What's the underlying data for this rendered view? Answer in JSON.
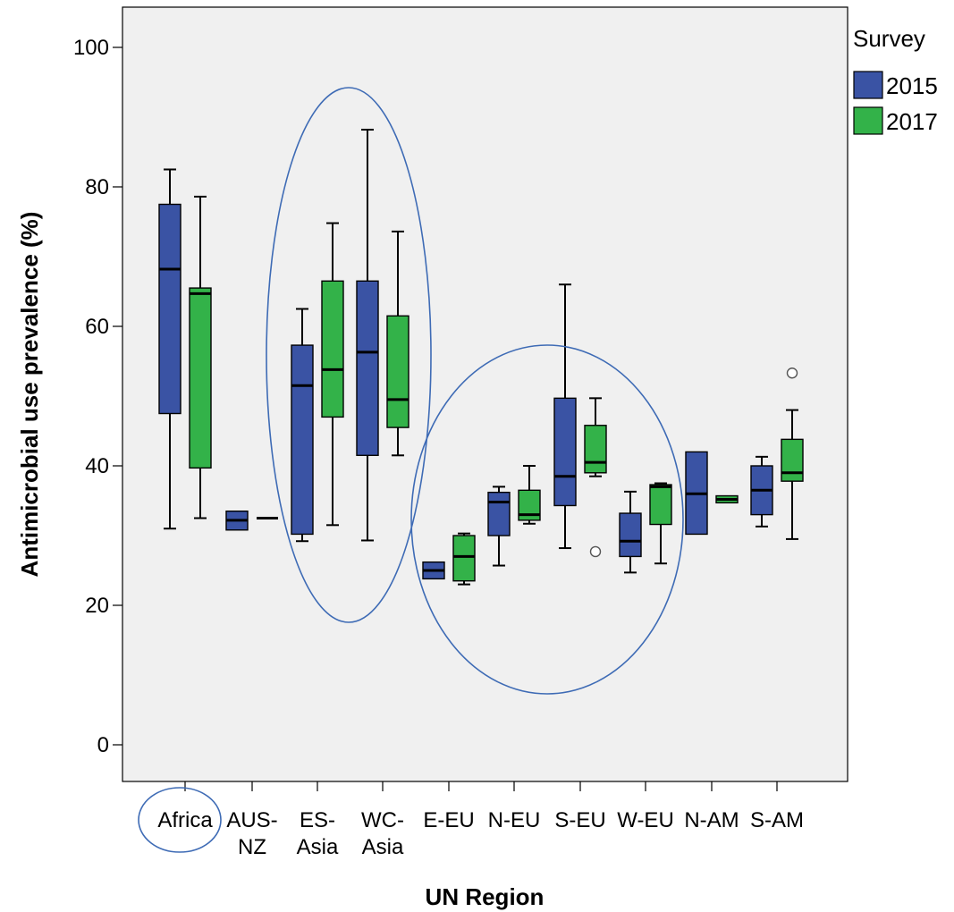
{
  "chart_data": {
    "type": "boxplot",
    "xlabel": "UN Region",
    "ylabel": "Antimicrobial use prevalence (%)",
    "ylim": [
      -5,
      106
    ],
    "yticks": [
      0,
      20,
      40,
      60,
      80,
      100
    ],
    "grid": false,
    "legend": {
      "title": "Survey",
      "placement": "top-right"
    },
    "categories": [
      {
        "lines": [
          "Africa"
        ]
      },
      {
        "lines": [
          "AUS-",
          "NZ"
        ]
      },
      {
        "lines": [
          "ES-",
          "Asia"
        ]
      },
      {
        "lines": [
          "WC-",
          "Asia"
        ]
      },
      {
        "lines": [
          "E-EU"
        ]
      },
      {
        "lines": [
          "N-EU"
        ]
      },
      {
        "lines": [
          "S-EU"
        ]
      },
      {
        "lines": [
          "W-EU"
        ]
      },
      {
        "lines": [
          "N-AM"
        ]
      },
      {
        "lines": [
          "S-AM"
        ]
      }
    ],
    "series": [
      {
        "name": "2015",
        "color": "#3a53a4",
        "boxes": [
          {
            "min": 31,
            "q1": 47.5,
            "median": 68.2,
            "q3": 77.5,
            "max": 82.5
          },
          {
            "min": 30.8,
            "q1": 30.8,
            "median": 32.2,
            "q3": 33.5,
            "max": 33.5
          },
          {
            "min": 29.2,
            "q1": 30.2,
            "median": 51.5,
            "q3": 57.3,
            "max": 62.5
          },
          {
            "min": 29.3,
            "q1": 41.5,
            "median": 56.3,
            "q3": 66.5,
            "max": 88.2
          },
          {
            "min": 23.8,
            "q1": 23.8,
            "median": 25,
            "q3": 26.2,
            "max": 26.2
          },
          {
            "min": 25.7,
            "q1": 30,
            "median": 34.8,
            "q3": 36.2,
            "max": 37
          },
          {
            "min": 28.2,
            "q1": 34.3,
            "median": 38.5,
            "q3": 49.7,
            "max": 66
          },
          {
            "min": 24.7,
            "q1": 27,
            "median": 29.2,
            "q3": 33.2,
            "max": 36.3
          },
          {
            "min": 30.2,
            "q1": 30.2,
            "median": 36,
            "q3": 42,
            "max": 42
          },
          {
            "min": 31.3,
            "q1": 33,
            "median": 36.5,
            "q3": 40,
            "max": 41.3
          }
        ]
      },
      {
        "name": "2017",
        "color": "#33b249",
        "boxes": [
          {
            "min": 32.5,
            "q1": 39.7,
            "median": 64.7,
            "q3": 65.5,
            "max": 78.6
          },
          {
            "min": 32.5,
            "q1": 32.5,
            "median": 32.5,
            "q3": 32.5,
            "max": 32.5
          },
          {
            "min": 31.5,
            "q1": 47,
            "median": 53.8,
            "q3": 66.5,
            "max": 74.8
          },
          {
            "min": 41.5,
            "q1": 45.5,
            "median": 49.5,
            "q3": 61.5,
            "max": 73.6
          },
          {
            "min": 23,
            "q1": 23.5,
            "median": 27,
            "q3": 30,
            "max": 30.3
          },
          {
            "min": 31.7,
            "q1": 32.2,
            "median": 33,
            "q3": 36.5,
            "max": 40
          },
          {
            "min": 38.5,
            "q1": 39,
            "median": 40.5,
            "q3": 45.8,
            "max": 49.7,
            "outliers": [
              27.7
            ]
          },
          {
            "min": 26,
            "q1": 31.6,
            "median": 37,
            "q3": 37.3,
            "max": 37.5
          },
          {
            "min": 34.7,
            "q1": 34.7,
            "median": 35.2,
            "q3": 35.7,
            "max": 35.7
          },
          {
            "min": 29.5,
            "q1": 37.8,
            "median": 39,
            "q3": 43.8,
            "max": 48,
            "outliers": [
              53.3
            ]
          }
        ]
      }
    ],
    "annotations": [
      {
        "shape": "ellipse",
        "groups": [
          "ES-Asia",
          "WC-Asia"
        ]
      },
      {
        "shape": "ellipse",
        "groups": [
          "E-EU",
          "N-EU",
          "S-EU",
          "W-EU"
        ]
      },
      {
        "shape": "ellipse",
        "groups": [
          "Africa"
        ],
        "target": "tick-label"
      }
    ]
  }
}
